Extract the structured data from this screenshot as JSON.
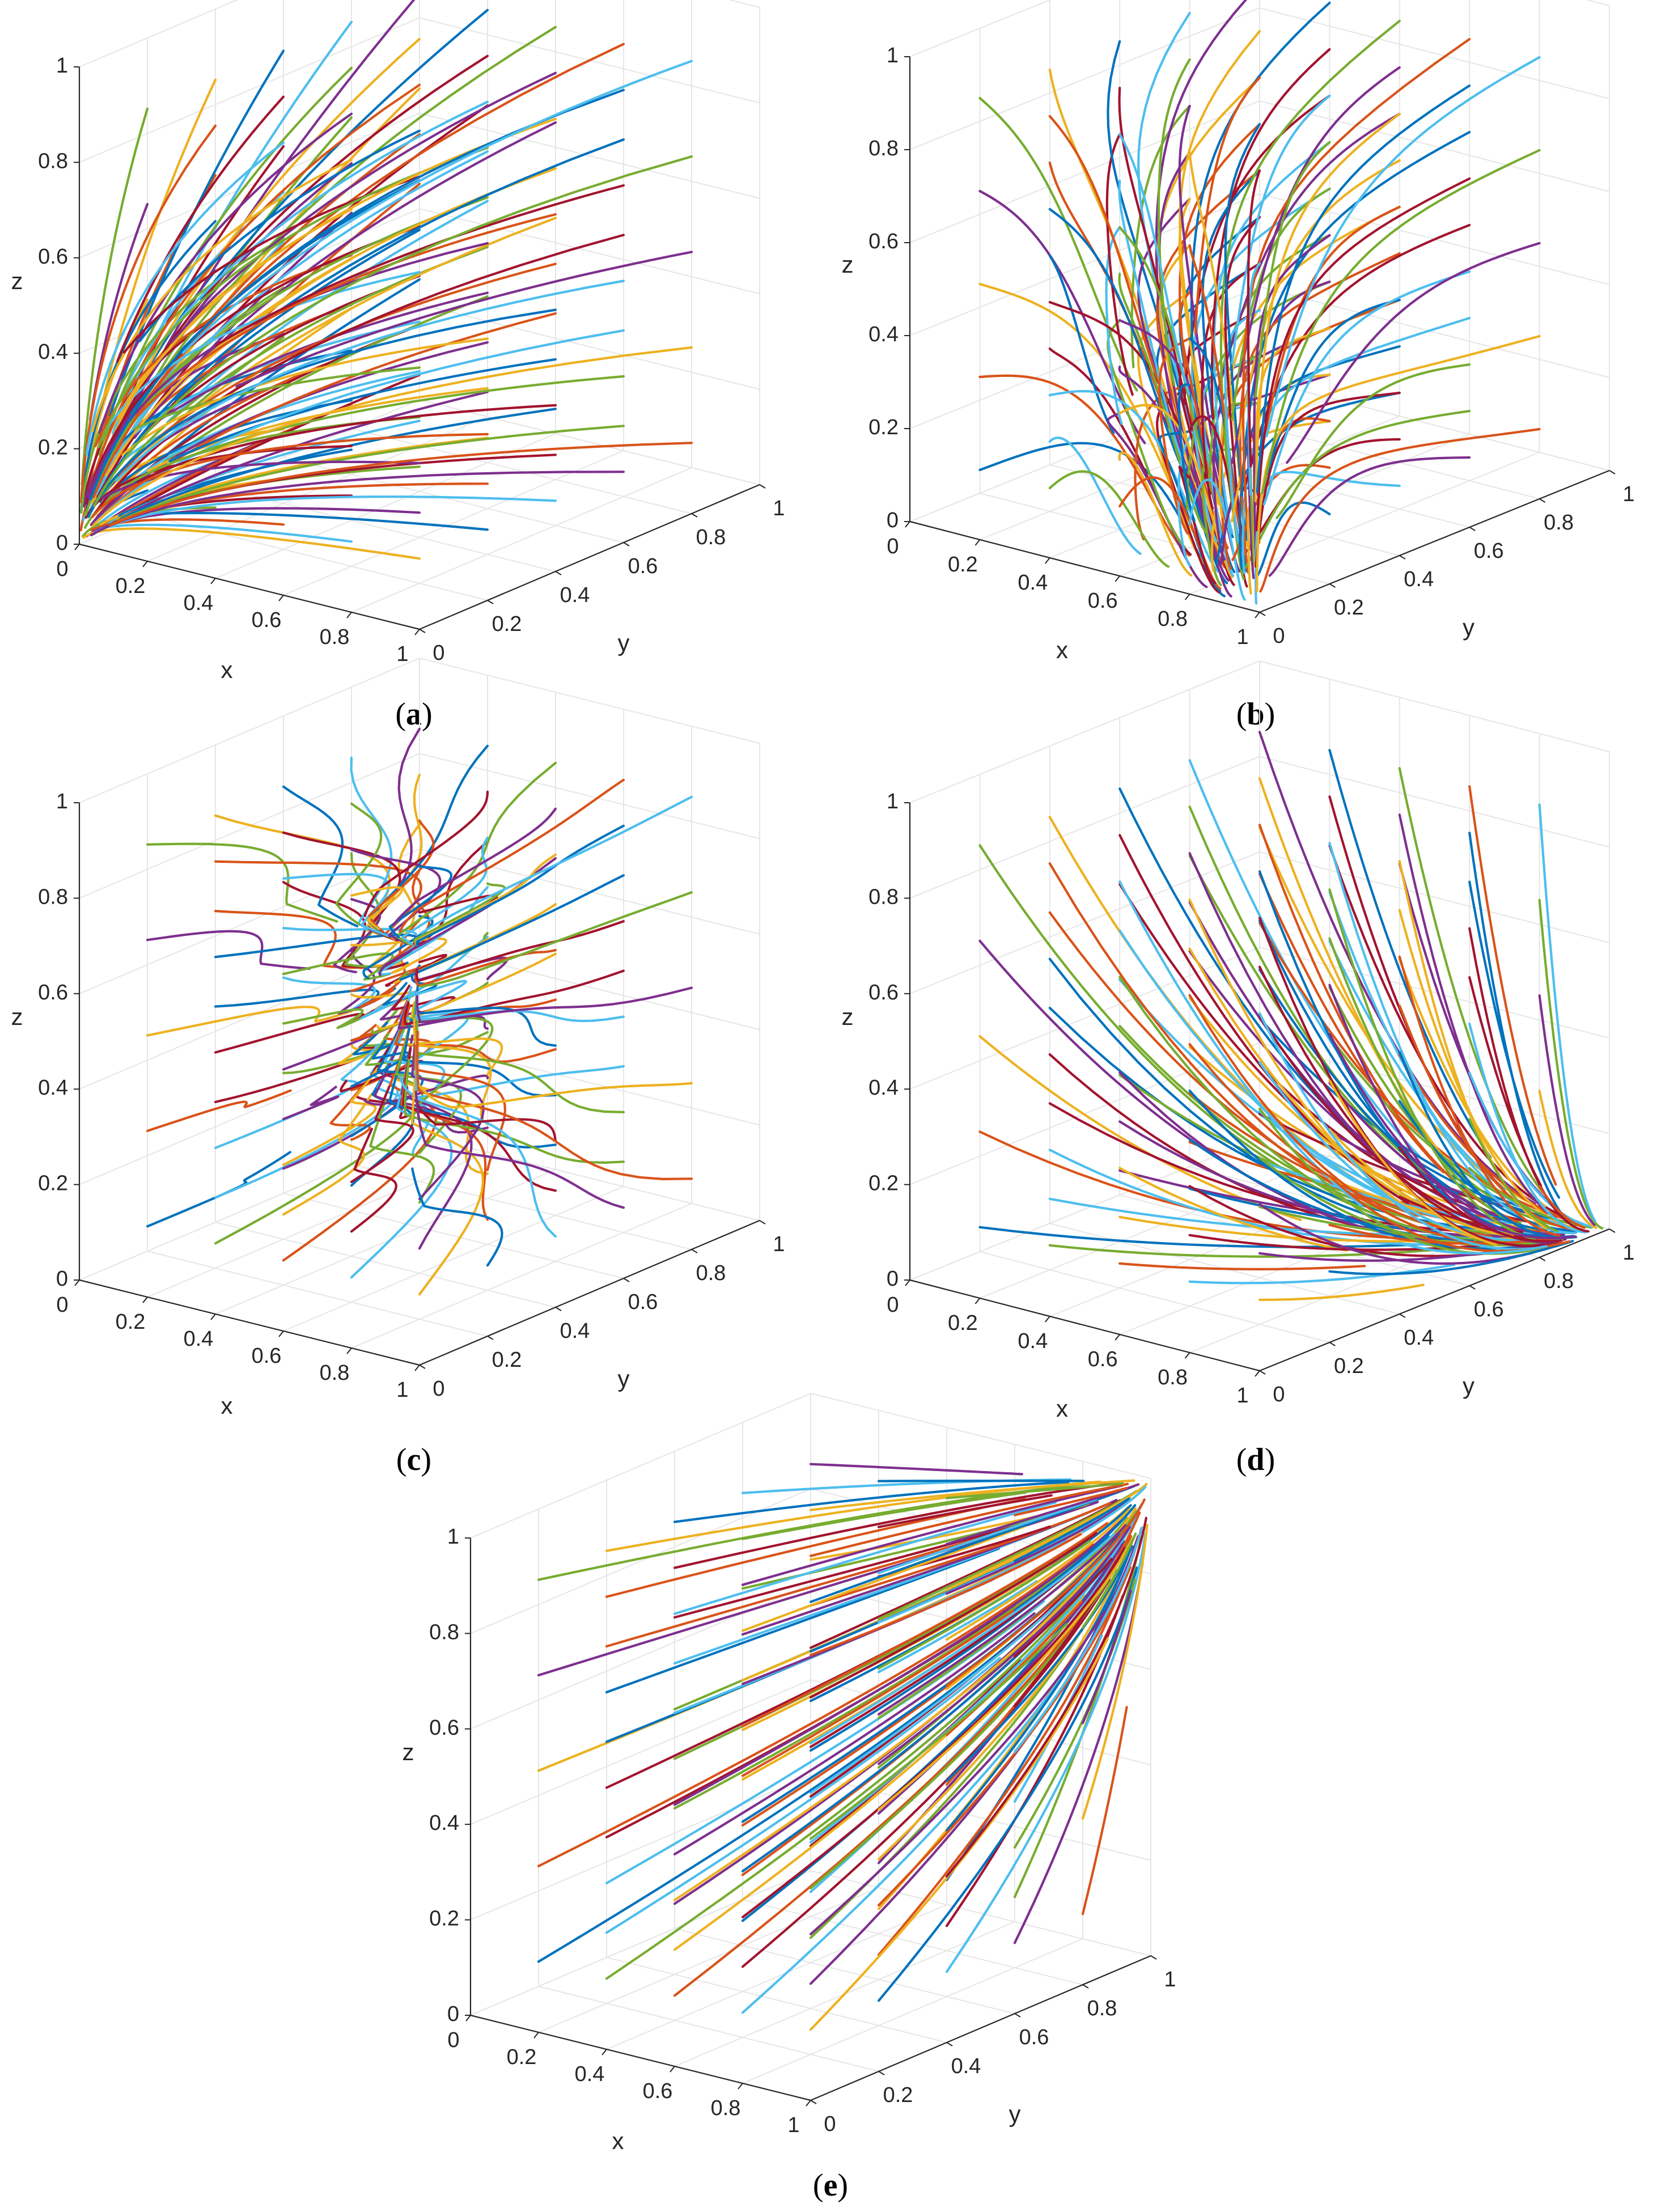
{
  "colors": [
    "#0072BD",
    "#D95319",
    "#EDB120",
    "#7E2F8E",
    "#77AC30",
    "#4DBEEE",
    "#A2142F"
  ],
  "chart_data": [
    {
      "type": "line",
      "projection": "3d",
      "panel": "a",
      "caption": "a",
      "xlabel": "x",
      "ylabel": "y",
      "zlabel": "z",
      "xlim": [
        0,
        1
      ],
      "ylim": [
        0,
        1
      ],
      "zlim": [
        0,
        1
      ],
      "grid": true,
      "x_ticks": [
        "0",
        "0.2",
        "0.4",
        "0.6",
        "0.8",
        "1"
      ],
      "y_ticks": [
        "0",
        "0.2",
        "0.4",
        "0.6",
        "0.8",
        "1"
      ],
      "z_ticks": [
        "0",
        "0.2",
        "0.4",
        "0.6",
        "0.8",
        "1"
      ],
      "equilibrium": [
        0,
        0,
        0
      ],
      "initial_conditions": {
        "x": [
          0.1,
          0.3,
          0.5,
          0.7,
          0.9
        ],
        "y": [
          0.1,
          0.3,
          0.5,
          0.7,
          0.9
        ],
        "z": [
          0.1,
          0.3,
          0.5,
          0.7,
          0.9
        ]
      }
    },
    {
      "type": "line",
      "projection": "3d",
      "panel": "b",
      "caption": "b",
      "xlabel": "x",
      "ylabel": "y",
      "zlabel": "z",
      "xlim": [
        0,
        1
      ],
      "ylim": [
        0,
        1
      ],
      "zlim": [
        0,
        1
      ],
      "grid": true,
      "x_ticks": [
        "0",
        "0.2",
        "0.4",
        "0.6",
        "0.8",
        "1"
      ],
      "y_ticks": [
        "0",
        "0.2",
        "0.4",
        "0.6",
        "0.8",
        "1"
      ],
      "z_ticks": [
        "0",
        "0.2",
        "0.4",
        "0.6",
        "0.8",
        "1"
      ],
      "equilibrium": [
        1,
        0,
        0
      ],
      "initial_conditions": {
        "x": [
          0.1,
          0.3,
          0.5,
          0.7,
          0.9
        ],
        "y": [
          0.1,
          0.3,
          0.5,
          0.7,
          0.9
        ],
        "z": [
          0.1,
          0.3,
          0.5,
          0.7,
          0.9
        ]
      }
    },
    {
      "type": "line",
      "projection": "3d",
      "panel": "c",
      "caption": "c",
      "xlabel": "x",
      "ylabel": "y",
      "zlabel": "z",
      "xlim": [
        0,
        1
      ],
      "ylim": [
        0,
        1
      ],
      "zlim": [
        0,
        1
      ],
      "grid": true,
      "x_ticks": [
        "0",
        "0.2",
        "0.4",
        "0.6",
        "0.8",
        "1"
      ],
      "y_ticks": [
        "0",
        "0.2",
        "0.4",
        "0.6",
        "0.8",
        "1"
      ],
      "z_ticks": [
        "0",
        "0.2",
        "0.4",
        "0.6",
        "0.8",
        "1"
      ],
      "equilibrium": [
        1,
        0,
        0.87
      ],
      "initial_conditions": {
        "x": [
          0.1,
          0.3,
          0.5,
          0.7,
          0.9
        ],
        "y": [
          0.1,
          0.3,
          0.5,
          0.7,
          0.9
        ],
        "z": [
          0.1,
          0.3,
          0.5,
          0.7,
          0.9
        ]
      }
    },
    {
      "type": "line",
      "projection": "3d",
      "panel": "d",
      "caption": "d",
      "xlabel": "x",
      "ylabel": "y",
      "zlabel": "z",
      "xlim": [
        0,
        1
      ],
      "ylim": [
        0,
        1
      ],
      "zlim": [
        0,
        1
      ],
      "grid": true,
      "x_ticks": [
        "0",
        "0.2",
        "0.4",
        "0.6",
        "0.8",
        "1"
      ],
      "y_ticks": [
        "0",
        "0.2",
        "0.4",
        "0.6",
        "0.8",
        "1"
      ],
      "z_ticks": [
        "0",
        "0.2",
        "0.4",
        "0.6",
        "0.8",
        "1"
      ],
      "equilibrium": [
        1,
        1,
        0
      ],
      "initial_conditions": {
        "x": [
          0.1,
          0.3,
          0.5,
          0.7,
          0.9
        ],
        "y": [
          0.1,
          0.3,
          0.5,
          0.7,
          0.9
        ],
        "z": [
          0.1,
          0.3,
          0.5,
          0.7,
          0.9
        ]
      }
    },
    {
      "type": "line",
      "projection": "3d",
      "panel": "e",
      "caption": "e",
      "xlabel": "x",
      "ylabel": "y",
      "zlabel": "z",
      "xlim": [
        0,
        1
      ],
      "ylim": [
        0,
        1
      ],
      "zlim": [
        0,
        1
      ],
      "grid": true,
      "x_ticks": [
        "0",
        "0.2",
        "0.4",
        "0.6",
        "0.8",
        "1"
      ],
      "y_ticks": [
        "0",
        "0.2",
        "0.4",
        "0.6",
        "0.8",
        "1"
      ],
      "z_ticks": [
        "0",
        "0.2",
        "0.4",
        "0.6",
        "0.8",
        "1"
      ],
      "equilibrium": [
        1,
        1,
        1
      ],
      "initial_conditions": {
        "x": [
          0.1,
          0.3,
          0.5,
          0.7,
          0.9
        ],
        "y": [
          0.1,
          0.3,
          0.5,
          0.7,
          0.9
        ],
        "z": [
          0.1,
          0.3,
          0.5,
          0.7,
          0.9
        ]
      }
    }
  ]
}
